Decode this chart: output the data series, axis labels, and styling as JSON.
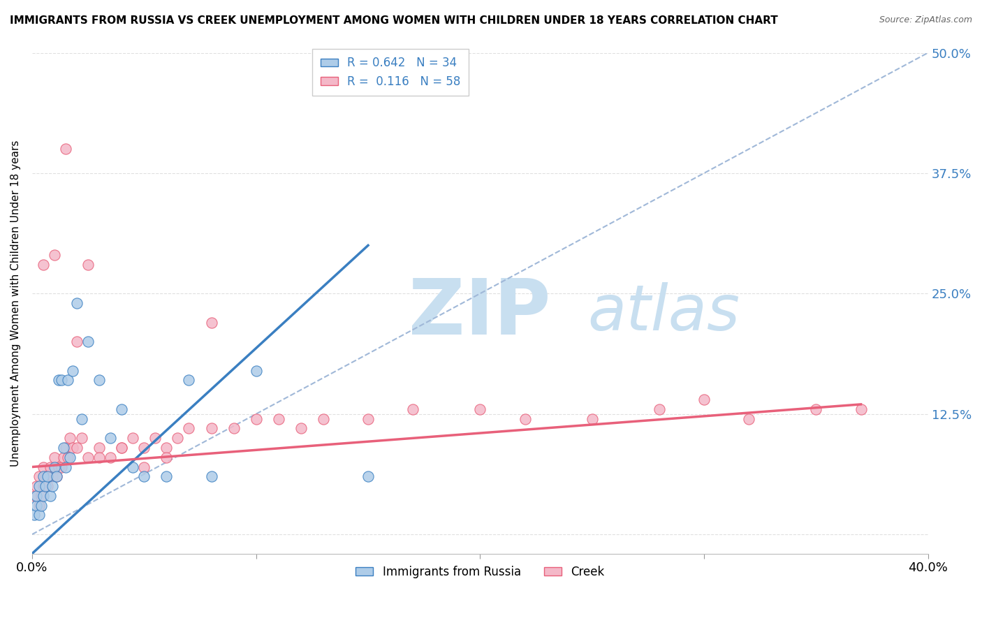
{
  "title": "IMMIGRANTS FROM RUSSIA VS CREEK UNEMPLOYMENT AMONG WOMEN WITH CHILDREN UNDER 18 YEARS CORRELATION CHART",
  "source": "Source: ZipAtlas.com",
  "ylabel": "Unemployment Among Women with Children Under 18 years",
  "xlim": [
    0.0,
    0.4
  ],
  "ylim": [
    -0.02,
    0.5
  ],
  "xticks": [
    0.0,
    0.1,
    0.2,
    0.3,
    0.4
  ],
  "xtick_labels": [
    "0.0%",
    "",
    "",
    "",
    "40.0%"
  ],
  "yticks": [
    0.0,
    0.125,
    0.25,
    0.375,
    0.5
  ],
  "ytick_labels_right": [
    "",
    "12.5%",
    "25.0%",
    "37.5%",
    "50.0%"
  ],
  "R_blue": 0.642,
  "N_blue": 34,
  "R_pink": 0.116,
  "N_pink": 58,
  "legend_label_blue": "Immigrants from Russia",
  "legend_label_pink": "Creek",
  "blue_scatter_color": "#aecce8",
  "pink_scatter_color": "#f4b8c8",
  "blue_line_color": "#3a7fc1",
  "pink_line_color": "#e8607a",
  "dashed_line_color": "#a0b8d8",
  "grid_color": "#e0e0e0",
  "blue_scatter_x": [
    0.001,
    0.002,
    0.002,
    0.003,
    0.003,
    0.004,
    0.005,
    0.005,
    0.006,
    0.007,
    0.008,
    0.009,
    0.01,
    0.011,
    0.012,
    0.013,
    0.014,
    0.015,
    0.016,
    0.017,
    0.018,
    0.02,
    0.022,
    0.025,
    0.03,
    0.035,
    0.04,
    0.045,
    0.05,
    0.06,
    0.07,
    0.08,
    0.1,
    0.15
  ],
  "blue_scatter_y": [
    0.02,
    0.03,
    0.04,
    0.02,
    0.05,
    0.03,
    0.04,
    0.06,
    0.05,
    0.06,
    0.04,
    0.05,
    0.07,
    0.06,
    0.16,
    0.16,
    0.09,
    0.07,
    0.16,
    0.08,
    0.17,
    0.24,
    0.12,
    0.2,
    0.16,
    0.1,
    0.13,
    0.07,
    0.06,
    0.06,
    0.16,
    0.06,
    0.17,
    0.06
  ],
  "blue_line_x": [
    0.0,
    0.15
  ],
  "blue_line_y": [
    -0.02,
    0.3
  ],
  "pink_scatter_x": [
    0.001,
    0.002,
    0.003,
    0.003,
    0.004,
    0.005,
    0.005,
    0.006,
    0.007,
    0.008,
    0.009,
    0.01,
    0.011,
    0.012,
    0.013,
    0.014,
    0.015,
    0.016,
    0.017,
    0.018,
    0.02,
    0.022,
    0.025,
    0.03,
    0.035,
    0.04,
    0.045,
    0.05,
    0.055,
    0.06,
    0.065,
    0.07,
    0.08,
    0.09,
    0.1,
    0.11,
    0.12,
    0.13,
    0.15,
    0.17,
    0.2,
    0.22,
    0.25,
    0.28,
    0.3,
    0.32,
    0.35,
    0.37,
    0.005,
    0.01,
    0.015,
    0.02,
    0.025,
    0.03,
    0.04,
    0.05,
    0.06,
    0.08
  ],
  "pink_scatter_y": [
    0.04,
    0.05,
    0.03,
    0.06,
    0.04,
    0.05,
    0.07,
    0.06,
    0.05,
    0.07,
    0.06,
    0.08,
    0.06,
    0.07,
    0.07,
    0.08,
    0.09,
    0.08,
    0.1,
    0.09,
    0.09,
    0.1,
    0.08,
    0.09,
    0.08,
    0.09,
    0.1,
    0.09,
    0.1,
    0.09,
    0.1,
    0.11,
    0.11,
    0.11,
    0.12,
    0.12,
    0.11,
    0.12,
    0.12,
    0.13,
    0.13,
    0.12,
    0.12,
    0.13,
    0.14,
    0.12,
    0.13,
    0.13,
    0.28,
    0.29,
    0.4,
    0.2,
    0.28,
    0.08,
    0.09,
    0.07,
    0.08,
    0.22
  ],
  "pink_line_x": [
    0.0,
    0.37
  ],
  "pink_line_y": [
    0.07,
    0.135
  ]
}
